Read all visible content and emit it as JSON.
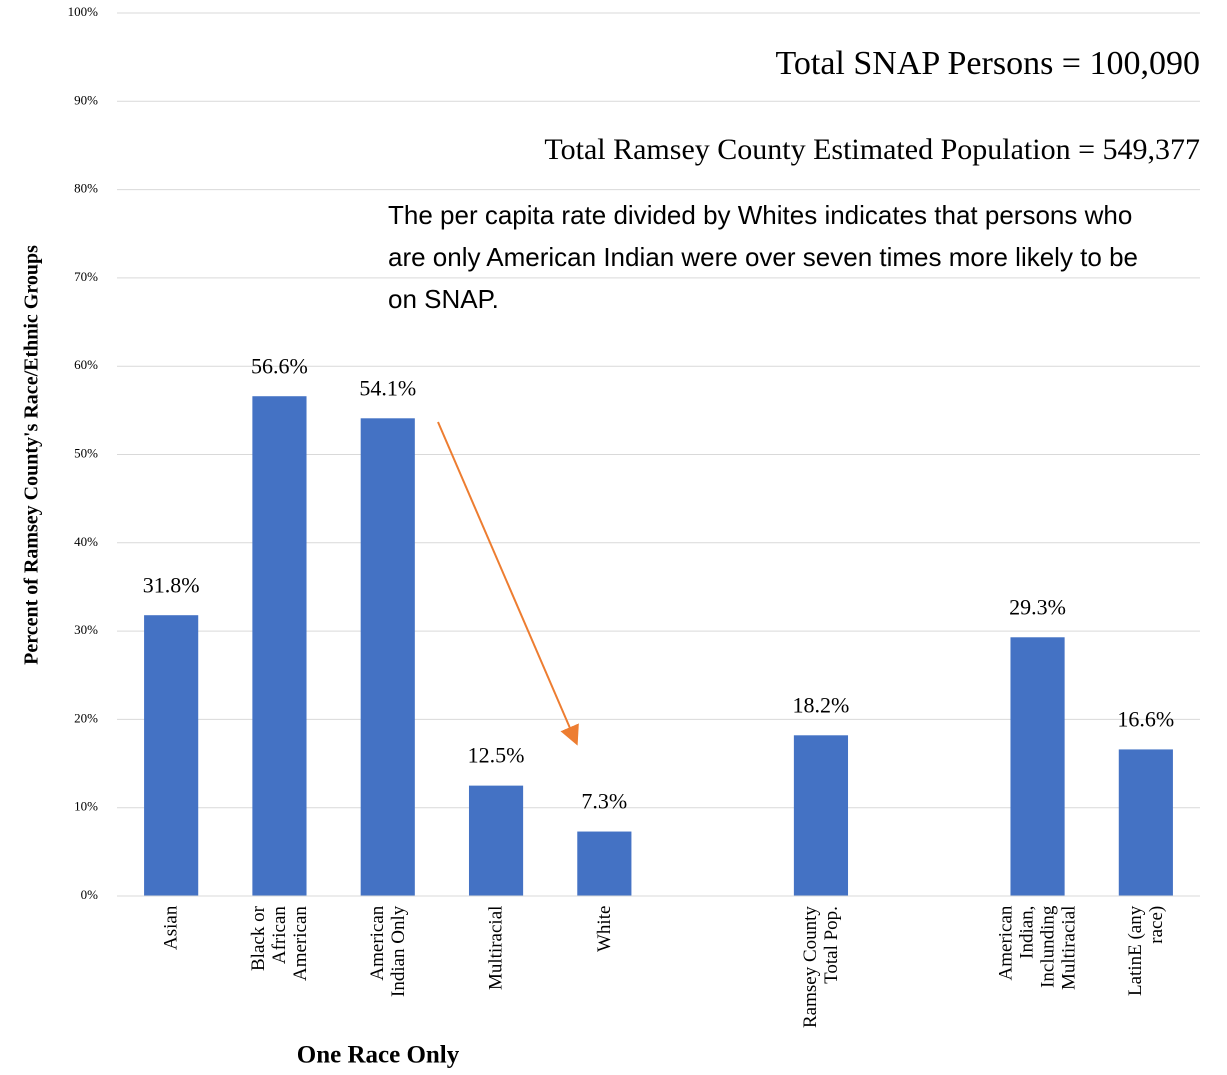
{
  "chart_data": {
    "type": "bar",
    "annotations": [
      "Total SNAP Persons = 100,090",
      "Total Ramsey County Estimated Population = 549,377",
      "The per capita rate divided by Whites indicates that persons who are only American Indian were over seven times more likely to be on SNAP."
    ],
    "x_label": "One Race Only",
    "y_label": "Percent of Ramsey County's Race/Ethnic Groups",
    "categories": [
      "Asian",
      "Black or\nAfrican\nAmerican",
      "American\nIndian Only",
      "Multiracial",
      "White",
      null,
      "Ramsey County\nTotal Pop.",
      null,
      "American\nIndian,\nInclunding\nMultiracial",
      "LatinE (any\nrace)"
    ],
    "values": [
      31.8,
      56.6,
      54.1,
      12.5,
      7.3,
      null,
      18.2,
      null,
      29.3,
      16.6
    ],
    "value_labels": [
      "31.8%",
      "56.6%",
      "54.1%",
      "12.5%",
      "7.3%",
      null,
      "18.2%",
      null,
      "29.3%",
      "16.6%"
    ],
    "color": "#4472c4",
    "ylim": [
      0,
      100
    ],
    "yticks": [
      {
        "value": 0,
        "label": "0%"
      },
      {
        "value": 10,
        "label": "10%"
      },
      {
        "value": 20,
        "label": "20%"
      },
      {
        "value": 30,
        "label": "30%"
      },
      {
        "value": 40,
        "label": "40%"
      },
      {
        "value": 50,
        "label": "50%"
      },
      {
        "value": 60,
        "label": "60%"
      },
      {
        "value": 70,
        "label": "70%"
      },
      {
        "value": 80,
        "label": "80%"
      },
      {
        "value": 90,
        "label": "90%"
      },
      {
        "value": 100,
        "label": "100%"
      }
    ],
    "grid": true
  }
}
